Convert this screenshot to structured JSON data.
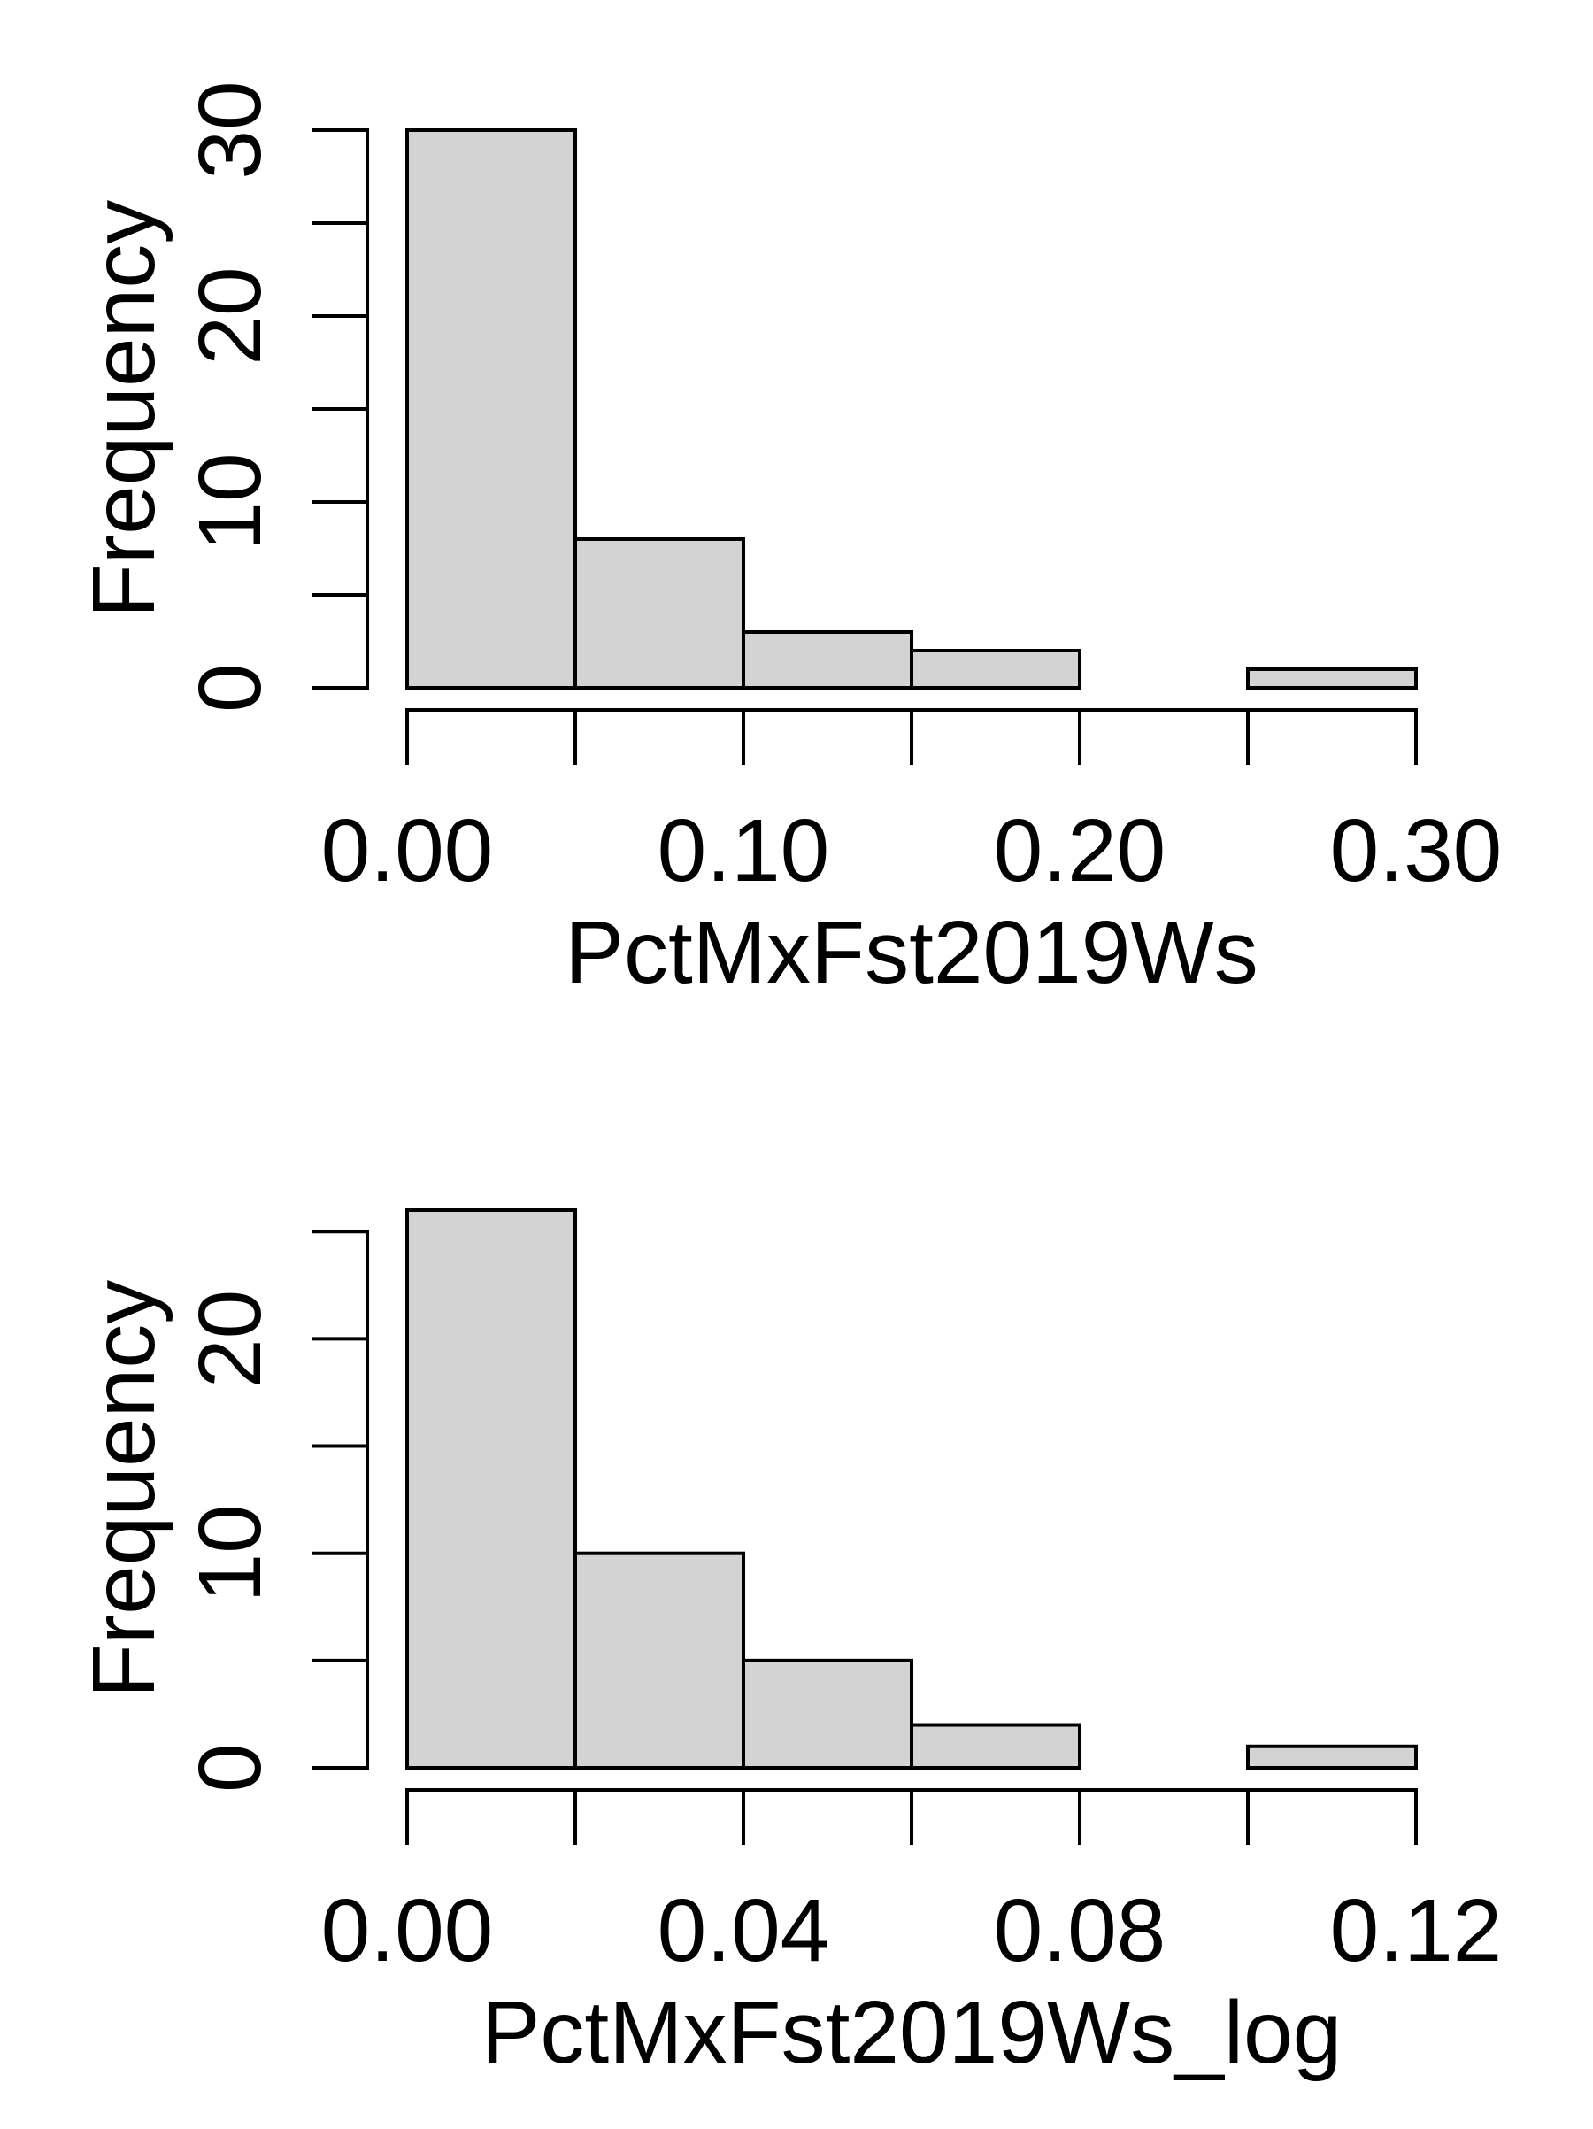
{
  "chart_data": [
    {
      "type": "bar",
      "title": "",
      "xlabel": "PctMxFst2019Ws",
      "ylabel": "Frequency",
      "bins": [
        {
          "start": 0.0,
          "end": 0.05,
          "count": 30
        },
        {
          "start": 0.05,
          "end": 0.1,
          "count": 8
        },
        {
          "start": 0.1,
          "end": 0.15,
          "count": 3
        },
        {
          "start": 0.15,
          "end": 0.2,
          "count": 2
        },
        {
          "start": 0.2,
          "end": 0.25,
          "count": 0
        },
        {
          "start": 0.25,
          "end": 0.3,
          "count": 1
        }
      ],
      "xlim": [
        0,
        0.3
      ],
      "ylim": [
        0,
        30
      ],
      "x_ticks": [
        0,
        0.05,
        0.1,
        0.15,
        0.2,
        0.25,
        0.3
      ],
      "x_tick_labels": [
        {
          "value": 0.0,
          "label": "0.00"
        },
        {
          "value": 0.1,
          "label": "0.10"
        },
        {
          "value": 0.2,
          "label": "0.20"
        },
        {
          "value": 0.3,
          "label": "0.30"
        }
      ],
      "y_ticks": [
        0,
        5,
        10,
        15,
        20,
        25,
        30
      ],
      "y_tick_labels": [
        {
          "value": 0,
          "label": "0"
        },
        {
          "value": 10,
          "label": "10"
        },
        {
          "value": 20,
          "label": "20"
        },
        {
          "value": 30,
          "label": "30"
        }
      ],
      "bar_fill": "#d3d3d3",
      "grid": false
    },
    {
      "type": "bar",
      "title": "",
      "xlabel": "PctMxFst2019Ws_log",
      "ylabel": "Frequency",
      "bins": [
        {
          "start": 0.0,
          "end": 0.02,
          "count": 26
        },
        {
          "start": 0.02,
          "end": 0.04,
          "count": 10
        },
        {
          "start": 0.04,
          "end": 0.06,
          "count": 5
        },
        {
          "start": 0.06,
          "end": 0.08,
          "count": 2
        },
        {
          "start": 0.08,
          "end": 0.1,
          "count": 0
        },
        {
          "start": 0.1,
          "end": 0.12,
          "count": 1
        }
      ],
      "xlim": [
        0,
        0.12
      ],
      "ylim": [
        0,
        26
      ],
      "x_ticks": [
        0,
        0.02,
        0.04,
        0.06,
        0.08,
        0.1,
        0.12
      ],
      "x_tick_labels": [
        {
          "value": 0.0,
          "label": "0.00"
        },
        {
          "value": 0.04,
          "label": "0.04"
        },
        {
          "value": 0.08,
          "label": "0.08"
        },
        {
          "value": 0.12,
          "label": "0.12"
        }
      ],
      "y_ticks": [
        0,
        5,
        10,
        15,
        20,
        25
      ],
      "y_tick_labels": [
        {
          "value": 0,
          "label": "0"
        },
        {
          "value": 10,
          "label": "10"
        },
        {
          "value": 20,
          "label": "20"
        }
      ],
      "bar_fill": "#d3d3d3",
      "grid": false
    }
  ]
}
